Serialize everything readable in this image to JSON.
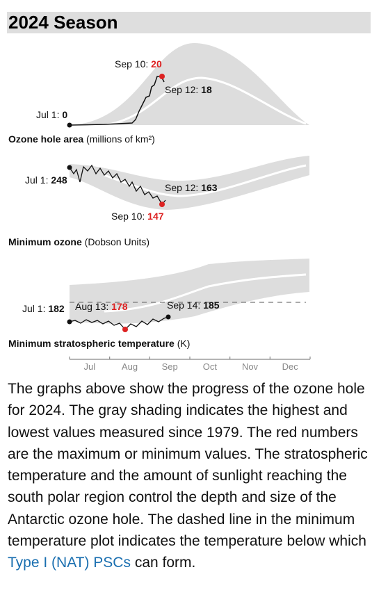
{
  "header": {
    "title": "2024 Season"
  },
  "panels": [
    {
      "title_bold": "Ozone hole area",
      "title_rest": "(millions of km²)",
      "annotations": [
        {
          "label": "Sep 10:",
          "value": 20,
          "highlight": true
        },
        {
          "label": "Sep 12:",
          "value": 18
        },
        {
          "label": "Jul 1:",
          "value": 0
        }
      ]
    },
    {
      "title_bold": "Minimum ozone",
      "title_rest": "(Dobson Units)",
      "annotations": [
        {
          "label": "Jul 1:",
          "value": 248
        },
        {
          "label": "Sep 12:",
          "value": 163
        },
        {
          "label": "Sep 10:",
          "value": 147,
          "highlight": true
        }
      ]
    },
    {
      "title_bold": "Minimum stratospheric temperature",
      "title_rest": "(K)",
      "annotations": [
        {
          "label": "Jul 1:",
          "value": 182
        },
        {
          "label": "Aug 13:",
          "value": 178,
          "highlight": true
        },
        {
          "label": "Sep 14:",
          "value": 185
        }
      ]
    }
  ],
  "axis_months": [
    "Jul",
    "Aug",
    "Sep",
    "Oct",
    "Nov",
    "Dec"
  ],
  "paragraph": {
    "before_link": "The graphs above show the progress of the ozone hole for 2024. The gray shading indicates the highest and lowest values measured since 1979. The red numbers are the maximum or minimum values. The stratospheric temperature and the amount of sunlight reaching the south polar region control the depth and size of the Antarctic ozone hole. The dashed line in the minimum temperature plot indicates the temperature below which",
    "link": "Type I (NAT) PSCs",
    "after_link": "can form."
  }
}
